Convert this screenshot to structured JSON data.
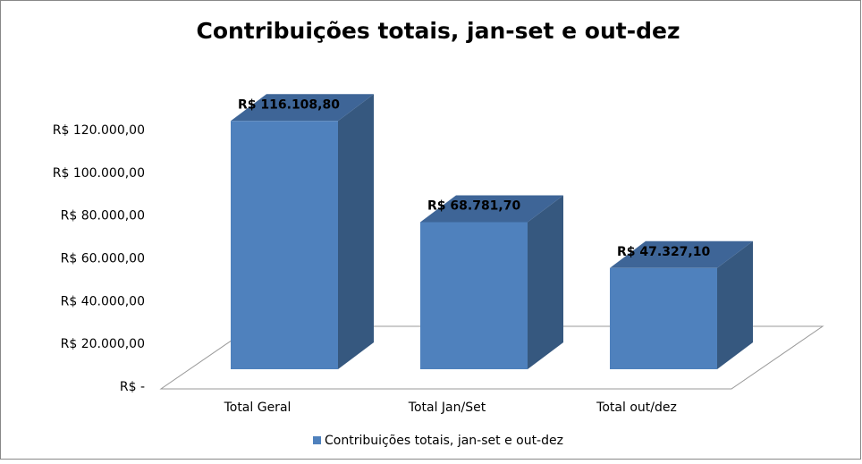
{
  "chart_data": {
    "type": "bar3d",
    "title": "Contribuições totais, jan-set e out-dez",
    "categories": [
      "Total Geral",
      "Total Jan/Set",
      "Total out/dez"
    ],
    "series": [
      {
        "name": "Contribuições totais, jan-set e out-dez",
        "color": "#4f81bd",
        "values": [
          116108.8,
          68781.7,
          47327.1
        ],
        "value_labels": [
          "R$ 116.108,80",
          "R$ 68.781,70",
          "R$ 47.327,10"
        ]
      }
    ],
    "ylim": [
      0,
      120000
    ],
    "yticks": [
      {
        "value": 0,
        "label": "R$ -"
      },
      {
        "value": 20000,
        "label": "R$ 20.000,00"
      },
      {
        "value": 40000,
        "label": "R$ 40.000,00"
      },
      {
        "value": 60000,
        "label": "R$ 60.000,00"
      },
      {
        "value": 80000,
        "label": "R$ 80.000,00"
      },
      {
        "value": 100000,
        "label": "R$ 100.000,00"
      },
      {
        "value": 120000,
        "label": "R$ 120.000,00"
      }
    ],
    "legend": "bottom"
  }
}
